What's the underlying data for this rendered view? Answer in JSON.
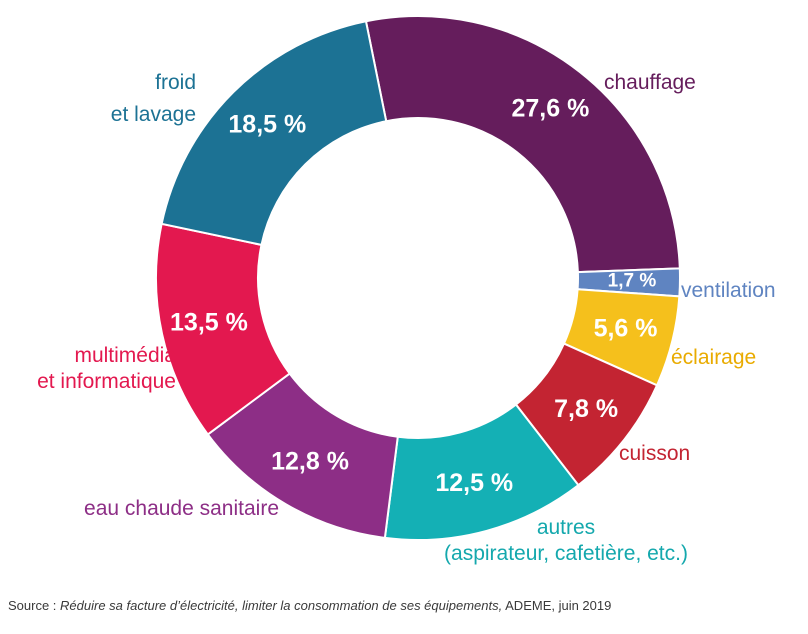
{
  "chart_data": {
    "type": "pie",
    "donut": true,
    "legend": "none",
    "slices": [
      {
        "label": "chauffage",
        "value": 27.6,
        "value_label": "27,6 %",
        "color": "#651d5c"
      },
      {
        "label": "ventilation",
        "value": 1.7,
        "value_label": "1,7 %",
        "color": "#5f84c1"
      },
      {
        "label": "éclairage",
        "value": 5.6,
        "value_label": "5,6 %",
        "color": "#f5c01c"
      },
      {
        "label": "cuisson",
        "value": 7.8,
        "value_label": "7,8 %",
        "color": "#c32432"
      },
      {
        "label": "autres (aspirateur, cafetière, etc.)",
        "value": 12.5,
        "value_label": "12,5 %",
        "color": "#14b0b5"
      },
      {
        "label": "eau chaude sanitaire",
        "value": 12.8,
        "value_label": "12,8 %",
        "color": "#8d2e86"
      },
      {
        "label": "multimédia et informatique",
        "value": 13.5,
        "value_label": "13,5 %",
        "color": "#e3184f"
      },
      {
        "label": "froid et lavage",
        "value": 18.5,
        "value_label": "18,5 %",
        "color": "#1c7294"
      }
    ],
    "label_lines": {
      "chauffage": [
        "chauffage"
      ],
      "ventilation": [
        "ventilation"
      ],
      "éclairage": [
        "éclairage"
      ],
      "cuisson": [
        "cuisson"
      ],
      "autres": [
        "autres",
        "(aspirateur, cafetière, etc.)"
      ],
      "eau_chaude": [
        "eau chaude sanitaire"
      ],
      "multimedia": [
        "multimédia",
        "et informatique"
      ],
      "froid": [
        "froid",
        "et lavage"
      ]
    }
  },
  "source": {
    "prefix": "Source : ",
    "title": "Réduire sa facture d’électricité, limiter la consommation de ses équipements,",
    "suffix": " ADEME, juin 2019"
  }
}
